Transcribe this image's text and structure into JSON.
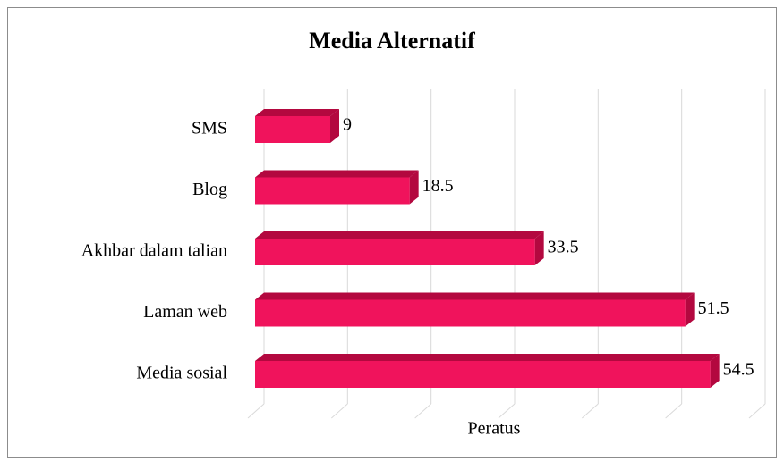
{
  "chart_data": {
    "type": "bar3d-horizontal",
    "title": "Media Alternatif",
    "categories": [
      "SMS",
      "Blog",
      "Akhbar dalam talian",
      "Laman web",
      "Media sosial"
    ],
    "values": [
      9,
      18.5,
      33.5,
      51.5,
      54.5
    ],
    "x_label": "Peratus",
    "color": "#f0135c",
    "shade_color": "#b3083f",
    "xlim": [
      0,
      60
    ],
    "xticks": [
      0,
      10,
      20,
      30,
      40,
      50,
      60
    ],
    "grid": true
  }
}
